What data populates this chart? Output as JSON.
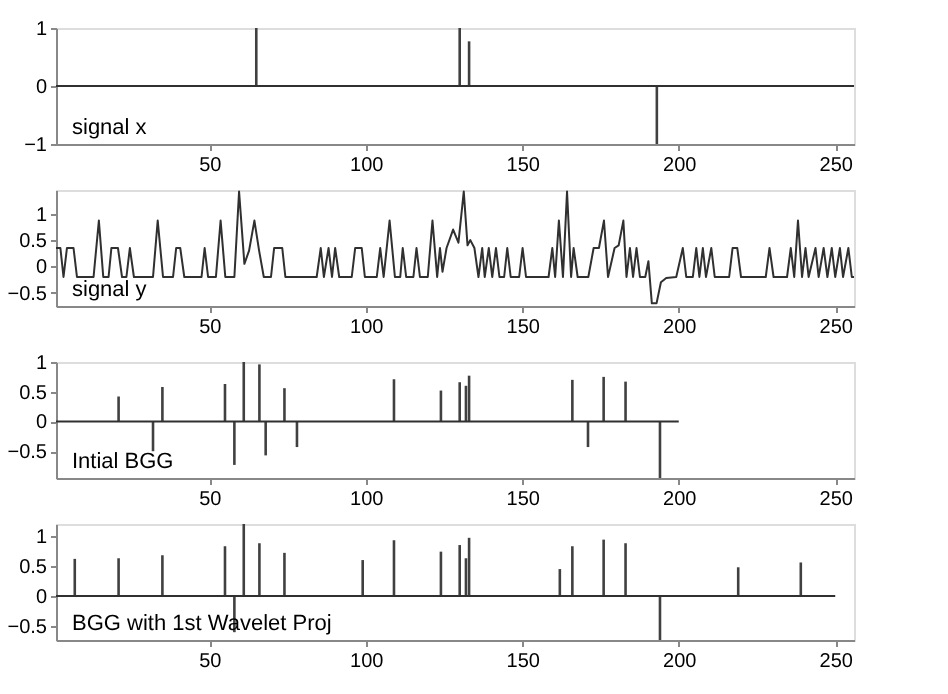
{
  "chart_data": [
    {
      "type": "bar",
      "annotations": [
        "signal x"
      ],
      "xlim": [
        1,
        256
      ],
      "xticks": [
        50,
        100,
        150,
        200,
        250
      ],
      "ylim": [
        -1,
        1
      ],
      "yticks": [
        -1,
        0,
        1
      ],
      "series": [
        {
          "color": "#404040",
          "x": [
            65,
            130,
            133,
            193
          ],
          "values": [
            1,
            1,
            0.77,
            -1
          ]
        },
        {
          "type": "line",
          "color": "#303030",
          "x": [
            1,
            256
          ],
          "values": [
            0,
            0
          ]
        }
      ]
    },
    {
      "type": "line",
      "annotations": [
        "signal y"
      ],
      "xlim": [
        1,
        256
      ],
      "xticks": [
        50,
        100,
        150,
        200,
        250
      ],
      "ylim": [
        -0.75,
        1.45
      ],
      "yticks": [
        -0.5,
        0,
        0.5,
        1
      ],
      "series": [
        {
          "color": "#303030",
          "x": [
            1,
            2.4,
            3.4,
            4.5,
            6.6,
            7.7,
            13,
            14.7,
            16.1,
            17.8,
            18.7,
            20.8,
            22.1,
            23.5,
            24.6,
            25.9,
            32,
            33.5,
            35.2,
            38.4,
            39.4,
            40.7,
            42,
            47.5,
            48.5,
            49.6,
            52.1,
            53.6,
            55.1,
            58,
            59.5,
            61.2,
            62.7,
            64.4,
            65.9,
            67.4,
            69.7,
            70.7,
            73.3,
            74.3,
            84.3,
            85.6,
            86.6,
            88.1,
            89.2,
            90.2,
            91.5,
            95.5,
            96.6,
            98.7,
            99.7,
            103.5,
            104.6,
            105.7,
            107.6,
            109.3,
            111,
            111.8,
            112.9,
            115.2,
            116.2,
            117.3,
            119.8,
            121.3,
            122.8,
            123.7,
            124.5,
            125.8,
            127.9,
            129.6,
            131.3,
            132.5,
            133.4,
            134.7,
            136,
            137.2,
            138,
            139.3,
            140.4,
            141.6,
            142.7,
            144.2,
            145.2,
            146.3,
            149,
            150.1,
            151.2,
            158.4,
            159.6,
            160.5,
            161.7,
            163,
            164.3,
            165.6,
            166.4,
            167.7,
            171.1,
            172.8,
            174.5,
            176.1,
            177.4,
            179.5,
            180.8,
            182.3,
            183.3,
            184.4,
            185.4,
            186.5,
            187.6,
            189.3,
            190.3,
            191.4,
            192.9,
            194.3,
            196,
            199.2,
            201.3,
            202.4,
            204.5,
            205.6,
            206.6,
            207.7,
            208.7,
            210.4,
            211.5,
            216.1,
            217.2,
            218.7,
            219.9,
            227.8,
            229,
            230.3,
            234.6,
            235.8,
            236.9,
            238.1,
            239.4,
            240.5,
            241.5,
            243.7,
            244.7,
            246.3,
            247.5,
            248.9,
            250,
            251.5,
            252.5,
            254.2,
            255.3,
            256
          ],
          "values": [
            0.35,
            0.35,
            -0.2,
            0.35,
            0.35,
            -0.2,
            -0.2,
            0.87,
            -0.2,
            -0.2,
            0.35,
            0.35,
            -0.2,
            -0.2,
            0.35,
            -0.2,
            -0.2,
            0.87,
            -0.2,
            -0.2,
            0.35,
            0.35,
            -0.2,
            -0.2,
            0.35,
            -0.2,
            -0.2,
            0.87,
            -0.2,
            -0.2,
            1.42,
            0.05,
            0.3,
            0.87,
            0.3,
            -0.2,
            -0.2,
            0.35,
            0.35,
            -0.2,
            -0.2,
            0.35,
            -0.2,
            0.35,
            -0.2,
            0.35,
            -0.2,
            -0.2,
            0.35,
            0.35,
            -0.2,
            -0.2,
            0.35,
            -0.2,
            0.87,
            -0.2,
            -0.2,
            0.35,
            -0.2,
            -0.2,
            0.35,
            -0.2,
            -0.2,
            0.87,
            -0.2,
            0.35,
            -0.1,
            0.35,
            0.7,
            0.45,
            1.42,
            0.4,
            0.5,
            0.35,
            -0.2,
            0.35,
            -0.2,
            0.35,
            -0.2,
            0.35,
            -0.2,
            -0.2,
            0.35,
            -0.2,
            -0.2,
            0.35,
            -0.2,
            -0.2,
            0.35,
            -0.2,
            0.87,
            -0.2,
            1.42,
            -0.2,
            0.35,
            -0.2,
            -0.2,
            0.35,
            0.35,
            0.87,
            -0.2,
            0.35,
            0.4,
            0.87,
            -0.2,
            0.35,
            -0.2,
            0.35,
            -0.2,
            -0.2,
            0.1,
            -0.7,
            -0.7,
            -0.3,
            -0.22,
            -0.2,
            0.35,
            -0.2,
            -0.2,
            0.35,
            -0.2,
            0.35,
            -0.2,
            0.35,
            -0.2,
            -0.2,
            0.35,
            0.35,
            -0.2,
            -0.2,
            0.35,
            -0.2,
            -0.2,
            0.35,
            -0.2,
            0.87,
            -0.2,
            0.35,
            -0.2,
            0.35,
            -0.2,
            0.35,
            -0.2,
            0.35,
            -0.2,
            0.35,
            -0.2,
            0.35,
            -0.2,
            -0.2
          ]
        }
      ]
    },
    {
      "type": "bar",
      "annotations": [
        "Intial BGG"
      ],
      "xlim": [
        1,
        256
      ],
      "xticks": [
        50,
        100,
        150,
        200,
        250
      ],
      "ylim": [
        -0.95,
        1
      ],
      "yticks": [
        -0.5,
        0,
        0.5,
        1
      ],
      "series": [
        {
          "color": "#404040",
          "x": [
            21,
            32,
            35,
            55,
            58,
            61,
            66,
            68,
            74,
            78,
            109,
            124,
            130,
            132,
            133,
            166,
            171,
            176,
            183,
            194
          ],
          "values": [
            0.42,
            -0.5,
            0.58,
            0.63,
            -0.73,
            1,
            0.96,
            -0.57,
            0.56,
            -0.43,
            0.71,
            0.52,
            0.66,
            0.6,
            0.77,
            0.7,
            -0.43,
            0.75,
            0.67,
            -0.95
          ]
        },
        {
          "type": "line",
          "color": "#303030",
          "x": [
            1,
            200
          ],
          "values": [
            0,
            0
          ]
        }
      ]
    },
    {
      "type": "bar",
      "annotations": [
        "BGG with 1st Wavelet Proj"
      ],
      "xlim": [
        1,
        256
      ],
      "xticks": [
        50,
        100,
        150,
        200,
        250
      ],
      "ylim": [
        -0.73,
        1.2
      ],
      "yticks": [
        -0.5,
        0,
        0.5,
        1
      ],
      "series": [
        {
          "color": "#404040",
          "x": [
            7,
            21,
            35,
            55,
            58,
            61,
            66,
            74,
            99,
            109,
            124,
            130,
            132,
            133,
            162,
            166,
            176,
            183,
            194,
            219,
            239
          ],
          "values": [
            0.62,
            0.63,
            0.68,
            0.83,
            -0.6,
            1.2,
            0.88,
            0.72,
            0.6,
            0.93,
            0.74,
            0.85,
            0.63,
            0.97,
            0.45,
            0.83,
            0.94,
            0.88,
            -0.73,
            0.48,
            0.56
          ]
        },
        {
          "type": "line",
          "color": "#303030",
          "x": [
            1,
            250
          ],
          "values": [
            0,
            0
          ]
        }
      ]
    }
  ]
}
